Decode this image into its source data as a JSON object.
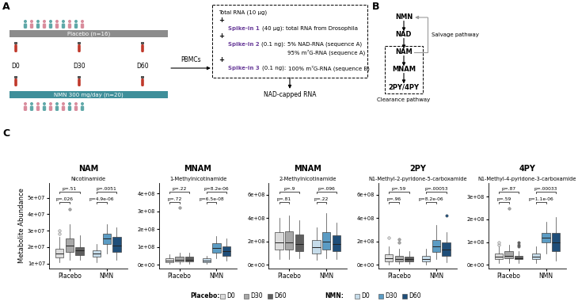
{
  "panel_a": {
    "label": "A",
    "placebo_arm": "Placebo (n=16)",
    "nmn_arm": "NMN 300 mg/day (n=20)",
    "timepoints": [
      "D0",
      "D30",
      "D60"
    ],
    "sample": "PBMCs",
    "joiner": "+",
    "protocol": [
      {
        "text": "Total RNA (10 μg)"
      },
      {
        "name": "Spike-in 1",
        "amount": "(40 μg):",
        "lines": [
          "total RNA from Drosophila"
        ]
      },
      {
        "name": "Spike-in 2",
        "amount": "(0.1 ng):",
        "lines": [
          "5% NAD-RNA (sequence A)",
          "95% m⁷G-RNA (sequence A)"
        ]
      },
      {
        "name": "Spike-in 3",
        "amount": "(0.1 ng):",
        "lines": [
          "100% m⁷G-RNA (sequence B)"
        ]
      }
    ],
    "product": "NAD-capped RNA"
  },
  "panel_b": {
    "label": "B",
    "nodes": [
      "NMN",
      "NAD",
      "NAM",
      "MNAM",
      "2PY/4PY"
    ],
    "salvage": "Salvage pathway",
    "clearance": "Clearance pathway"
  },
  "panel_c_label": "C",
  "box_legend": [
    {
      "title": "Placebo:",
      "entries": [
        "D0",
        "D30",
        "D60"
      ],
      "colors": [
        "#dcdcdc",
        "#a8a8a8",
        "#5e5e5e"
      ]
    },
    {
      "title": "NMN:",
      "entries": [
        "D0",
        "D30",
        "D60"
      ],
      "colors": [
        "#c6dcea",
        "#5b9cc4",
        "#1f4e79"
      ]
    }
  ],
  "chart_data": [
    {
      "type": "box",
      "title": "NAM",
      "subtitle": "Nicotinamide",
      "y_label": "Metabolite Abundance",
      "categories": [
        "Placebo",
        "NMN"
      ],
      "ylim": [
        7000000,
        59000000
      ],
      "yticks": [
        {
          "value": 10000000,
          "label": "1e+07"
        },
        {
          "value": 20000000,
          "label": "2e+07"
        },
        {
          "value": 30000000,
          "label": "3e+07"
        },
        {
          "value": 40000000,
          "label": "4e+07"
        },
        {
          "value": 50000000,
          "label": "5e+07"
        }
      ],
      "series": [
        {
          "name": "D0",
          "colors": [
            "#dcdcdc",
            "#c6dcea"
          ],
          "values": [
            {
              "whislo": 11000000,
              "q1": 13500000,
              "med": 16000000,
              "q3": 19000000,
              "whishi": 26000000,
              "fliers": [
                28000000,
                30000000
              ]
            },
            {
              "whislo": 11000000,
              "q1": 14000000,
              "med": 16000000,
              "q3": 18000000,
              "whishi": 22000000,
              "fliers": []
            }
          ]
        },
        {
          "name": "D30",
          "colors": [
            "#a8a8a8",
            "#5b9cc4"
          ],
          "values": [
            {
              "whislo": 12000000,
              "q1": 17000000,
              "med": 21000000,
              "q3": 25000000,
              "whishi": 34000000,
              "fliers": [
                43000000
              ]
            },
            {
              "whislo": 16000000,
              "q1": 22000000,
              "med": 25000000,
              "q3": 28000000,
              "whishi": 34000000,
              "fliers": []
            }
          ]
        },
        {
          "name": "D60",
          "colors": [
            "#5e5e5e",
            "#1f4e79"
          ],
          "values": [
            {
              "whislo": 12000000,
              "q1": 15000000,
              "med": 18000000,
              "q3": 20000000,
              "whishi": 27000000,
              "fliers": []
            },
            {
              "whislo": 12000000,
              "q1": 17000000,
              "med": 21000000,
              "q3": 26000000,
              "whishi": 32000000,
              "fliers": []
            }
          ]
        }
      ],
      "comparisons": [
        {
          "category": "Placebo",
          "pair": [
            "D0",
            "D60"
          ],
          "label": "p=.51"
        },
        {
          "category": "Placebo",
          "pair": [
            "D0",
            "D30"
          ],
          "label": "p=.026"
        },
        {
          "category": "NMN",
          "pair": [
            "D0",
            "D60"
          ],
          "label": "p=.0051"
        },
        {
          "category": "NMN",
          "pair": [
            "D0",
            "D30"
          ],
          "label": "p=4.9e-06"
        }
      ]
    },
    {
      "type": "box",
      "title": "MNAM",
      "subtitle": "1-Methylnicotinamide",
      "categories": [
        "Placebo",
        "NMN"
      ],
      "ylim": [
        -20000000,
        460000000
      ],
      "yticks": [
        {
          "value": 0,
          "label": "0e+00"
        },
        {
          "value": 100000000,
          "label": "1e+08"
        },
        {
          "value": 200000000,
          "label": "2e+08"
        },
        {
          "value": 300000000,
          "label": "3e+08"
        },
        {
          "value": 400000000,
          "label": "4e+08"
        }
      ],
      "series": [
        {
          "name": "D0",
          "colors": [
            "#dcdcdc",
            "#c6dcea"
          ],
          "values": [
            {
              "whislo": 5000000,
              "q1": 15000000,
              "med": 25000000,
              "q3": 35000000,
              "whishi": 60000000,
              "fliers": []
            },
            {
              "whislo": 5000000,
              "q1": 15000000,
              "med": 25000000,
              "q3": 35000000,
              "whishi": 50000000,
              "fliers": []
            }
          ]
        },
        {
          "name": "D30",
          "colors": [
            "#a8a8a8",
            "#5b9cc4"
          ],
          "values": [
            {
              "whislo": 5000000,
              "q1": 20000000,
              "med": 30000000,
              "q3": 45000000,
              "whishi": 70000000,
              "fliers": [
                320000000
              ]
            },
            {
              "whislo": 35000000,
              "q1": 70000000,
              "med": 95000000,
              "q3": 120000000,
              "whishi": 160000000,
              "fliers": []
            }
          ]
        },
        {
          "name": "D60",
          "colors": [
            "#5e5e5e",
            "#1f4e79"
          ],
          "values": [
            {
              "whislo": 5000000,
              "q1": 20000000,
              "med": 30000000,
              "q3": 45000000,
              "whishi": 70000000,
              "fliers": []
            },
            {
              "whislo": 25000000,
              "q1": 50000000,
              "med": 75000000,
              "q3": 105000000,
              "whishi": 150000000,
              "fliers": []
            }
          ]
        }
      ],
      "comparisons": [
        {
          "category": "Placebo",
          "pair": [
            "D0",
            "D60"
          ],
          "label": "p=.22"
        },
        {
          "category": "Placebo",
          "pair": [
            "D0",
            "D30"
          ],
          "label": "p=.72"
        },
        {
          "category": "NMN",
          "pair": [
            "D0",
            "D60"
          ],
          "label": "p=8.2e-06"
        },
        {
          "category": "NMN",
          "pair": [
            "D0",
            "D30"
          ],
          "label": "p=6.5e-08"
        }
      ]
    },
    {
      "type": "box",
      "title": "MNAM",
      "subtitle": "2-Methylnicotinamide",
      "categories": [
        "Placebo",
        "NMN"
      ],
      "ylim": [
        -30000000,
        700000000
      ],
      "yticks": [
        {
          "value": 0,
          "label": "0e+00"
        },
        {
          "value": 200000000,
          "label": "2e+08"
        },
        {
          "value": 400000000,
          "label": "4e+08"
        },
        {
          "value": 600000000,
          "label": "6e+08"
        }
      ],
      "series": [
        {
          "name": "D0",
          "colors": [
            "#dcdcdc",
            "#c6dcea"
          ],
          "values": [
            {
              "whislo": 50000000,
              "q1": 130000000,
              "med": 190000000,
              "q3": 280000000,
              "whishi": 400000000,
              "fliers": []
            },
            {
              "whislo": 40000000,
              "q1": 100000000,
              "med": 150000000,
              "q3": 210000000,
              "whishi": 320000000,
              "fliers": []
            }
          ]
        },
        {
          "name": "D30",
          "colors": [
            "#a8a8a8",
            "#5b9cc4"
          ],
          "values": [
            {
              "whislo": 50000000,
              "q1": 130000000,
              "med": 190000000,
              "q3": 290000000,
              "whishi": 420000000,
              "fliers": []
            },
            {
              "whislo": 60000000,
              "q1": 130000000,
              "med": 200000000,
              "q3": 280000000,
              "whishi": 440000000,
              "fliers": []
            }
          ]
        },
        {
          "name": "D60",
          "colors": [
            "#5e5e5e",
            "#1f4e79"
          ],
          "values": [
            {
              "whislo": 60000000,
              "q1": 120000000,
              "med": 180000000,
              "q3": 260000000,
              "whishi": 380000000,
              "fliers": []
            },
            {
              "whislo": 50000000,
              "q1": 120000000,
              "med": 180000000,
              "q3": 250000000,
              "whishi": 360000000,
              "fliers": []
            }
          ]
        }
      ],
      "comparisons": [
        {
          "category": "Placebo",
          "pair": [
            "D0",
            "D60"
          ],
          "label": "p=.9"
        },
        {
          "category": "Placebo",
          "pair": [
            "D0",
            "D30"
          ],
          "label": "p=.81"
        },
        {
          "category": "NMN",
          "pair": [
            "D0",
            "D60"
          ],
          "label": "p=.096"
        },
        {
          "category": "NMN",
          "pair": [
            "D0",
            "D30"
          ],
          "label": "p=.22"
        }
      ]
    },
    {
      "type": "box",
      "title": "2PY",
      "subtitle": "N1-Methyl-2-pyridone-5-carboxamide",
      "categories": [
        "Placebo",
        "NMN"
      ],
      "ylim": [
        -30000000,
        700000000
      ],
      "yticks": [
        {
          "value": 0,
          "label": "0e+00"
        },
        {
          "value": 200000000,
          "label": "2e+08"
        },
        {
          "value": 400000000,
          "label": "4e+08"
        },
        {
          "value": 600000000,
          "label": "6e+08"
        }
      ],
      "series": [
        {
          "name": "D0",
          "colors": [
            "#dcdcdc",
            "#c6dcea"
          ],
          "values": [
            {
              "whislo": 5000000,
              "q1": 30000000,
              "med": 60000000,
              "q3": 90000000,
              "whishi": 160000000,
              "fliers": [
                230000000
              ]
            },
            {
              "whislo": 5000000,
              "q1": 30000000,
              "med": 50000000,
              "q3": 80000000,
              "whishi": 140000000,
              "fliers": []
            }
          ]
        },
        {
          "name": "D30",
          "colors": [
            "#a8a8a8",
            "#5b9cc4"
          ],
          "values": [
            {
              "whislo": 10000000,
              "q1": 30000000,
              "med": 50000000,
              "q3": 80000000,
              "whishi": 140000000,
              "fliers": [
                190000000,
                220000000
              ]
            },
            {
              "whislo": 50000000,
              "q1": 110000000,
              "med": 160000000,
              "q3": 210000000,
              "whishi": 340000000,
              "fliers": []
            }
          ]
        },
        {
          "name": "D60",
          "colors": [
            "#5e5e5e",
            "#1f4e79"
          ],
          "values": [
            {
              "whislo": 10000000,
              "q1": 30000000,
              "med": 50000000,
              "q3": 70000000,
              "whishi": 120000000,
              "fliers": []
            },
            {
              "whislo": 20000000,
              "q1": 80000000,
              "med": 130000000,
              "q3": 190000000,
              "whishi": 280000000,
              "fliers": [
                420000000
              ]
            }
          ]
        }
      ],
      "comparisons": [
        {
          "category": "Placebo",
          "pair": [
            "D0",
            "D60"
          ],
          "label": "p=.59"
        },
        {
          "category": "Placebo",
          "pair": [
            "D0",
            "D30"
          ],
          "label": "p=.96"
        },
        {
          "category": "NMN",
          "pair": [
            "D0",
            "D60"
          ],
          "label": "p=.00053"
        },
        {
          "category": "NMN",
          "pair": [
            "D0",
            "D30"
          ],
          "label": "p=8.2e-06"
        }
      ]
    },
    {
      "type": "box",
      "title": "4PY",
      "subtitle": "N1-Methyl-4-pyridone-3-carboxamide",
      "categories": [
        "Placebo",
        "NMN"
      ],
      "ylim": [
        -15000000,
        360000000
      ],
      "yticks": [
        {
          "value": 0,
          "label": "0e+00"
        },
        {
          "value": 100000000,
          "label": "1e+08"
        },
        {
          "value": 200000000,
          "label": "2e+08"
        },
        {
          "value": 300000000,
          "label": "3e+08"
        }
      ],
      "series": [
        {
          "name": "D0",
          "colors": [
            "#dcdcdc",
            "#c6dcea"
          ],
          "values": [
            {
              "whislo": 10000000,
              "q1": 25000000,
              "med": 35000000,
              "q3": 50000000,
              "whishi": 80000000,
              "fliers": [
                90000000,
                100000000
              ]
            },
            {
              "whislo": 10000000,
              "q1": 25000000,
              "med": 35000000,
              "q3": 50000000,
              "whishi": 80000000,
              "fliers": []
            }
          ]
        },
        {
          "name": "D30",
          "colors": [
            "#a8a8a8",
            "#5b9cc4"
          ],
          "values": [
            {
              "whislo": 10000000,
              "q1": 30000000,
              "med": 40000000,
              "q3": 60000000,
              "whishi": 90000000,
              "fliers": [
                250000000
              ]
            },
            {
              "whislo": 50000000,
              "q1": 100000000,
              "med": 120000000,
              "q3": 140000000,
              "whishi": 190000000,
              "fliers": []
            }
          ]
        },
        {
          "name": "D60",
          "colors": [
            "#5e5e5e",
            "#1f4e79"
          ],
          "values": [
            {
              "whislo": 10000000,
              "q1": 25000000,
              "med": 30000000,
              "q3": 40000000,
              "whishi": 60000000,
              "fliers": [
                80000000,
                90000000,
                100000000
              ]
            },
            {
              "whislo": 20000000,
              "q1": 60000000,
              "med": 100000000,
              "q3": 140000000,
              "whishi": 210000000,
              "fliers": []
            }
          ]
        }
      ],
      "comparisons": [
        {
          "category": "Placebo",
          "pair": [
            "D0",
            "D60"
          ],
          "label": "p=.87"
        },
        {
          "category": "Placebo",
          "pair": [
            "D0",
            "D30"
          ],
          "label": "p=.59"
        },
        {
          "category": "NMN",
          "pair": [
            "D0",
            "D60"
          ],
          "label": "p=.00033"
        },
        {
          "category": "NMN",
          "pair": [
            "D0",
            "D30"
          ],
          "label": "p=1.1e-06"
        }
      ]
    }
  ]
}
